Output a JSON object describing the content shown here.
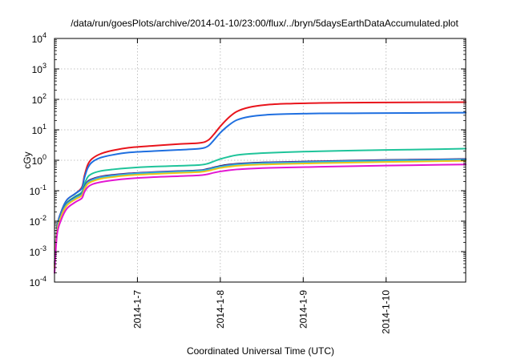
{
  "chart_data": {
    "type": "line",
    "title": "/data/run/goesPlots/archive/2014-01-10/23:00/flux/../bryn/5daysEarthDataAccumulated.plot",
    "xlabel": "Coordinated Universal Time (UTC)",
    "ylabel": "cGy",
    "yscale": "log",
    "ylim": [
      0.0001,
      10000
    ],
    "xlim": [
      "2014-01-06",
      "2014-01-10 23:00"
    ],
    "y_ticks": [
      {
        "base": "10",
        "exp": "-4"
      },
      {
        "base": "10",
        "exp": "-3"
      },
      {
        "base": "10",
        "exp": "-2"
      },
      {
        "base": "10",
        "exp": "-1"
      },
      {
        "base": "10",
        "exp": "0"
      },
      {
        "base": "10",
        "exp": "1"
      },
      {
        "base": "10",
        "exp": "2"
      },
      {
        "base": "10",
        "exp": "3"
      },
      {
        "base": "10",
        "exp": "4"
      }
    ],
    "x_ticks": [
      {
        "label": "2014-1-7",
        "day": 1
      },
      {
        "label": "2014-1-8",
        "day": 2
      },
      {
        "label": "2014-1-9",
        "day": 3
      },
      {
        "label": "2014-1-10",
        "day": 4
      }
    ],
    "grid": true,
    "legend": "none",
    "x_days": [
      0,
      0.03,
      0.08,
      0.15,
      0.25,
      0.33,
      0.36,
      0.4,
      0.45,
      0.55,
      0.7,
      0.9,
      1.2,
      1.5,
      1.75,
      1.85,
      1.92,
      2.0,
      2.1,
      2.2,
      2.35,
      2.55,
      2.8,
      3.2,
      3.6,
      4.0,
      4.5,
      4.96
    ],
    "series": [
      {
        "color": "#e8141c",
        "values": [
          0.0003,
          0.006,
          0.02,
          0.05,
          0.08,
          0.13,
          0.3,
          0.7,
          1.1,
          1.6,
          2.1,
          2.6,
          3.0,
          3.4,
          3.7,
          4.5,
          7.0,
          13,
          25,
          40,
          55,
          66,
          72,
          76,
          78,
          79,
          80,
          81
        ]
      },
      {
        "color": "#1f6fe0",
        "values": [
          0.0003,
          0.006,
          0.02,
          0.05,
          0.08,
          0.12,
          0.26,
          0.55,
          0.85,
          1.2,
          1.5,
          1.8,
          2.0,
          2.2,
          2.4,
          2.9,
          4.5,
          8.0,
          14,
          21,
          27,
          31,
          33,
          34.5,
          35,
          35.5,
          36,
          36.5
        ]
      },
      {
        "color": "#1fc49a",
        "values": [
          0.0003,
          0.005,
          0.017,
          0.04,
          0.065,
          0.09,
          0.16,
          0.28,
          0.36,
          0.44,
          0.5,
          0.56,
          0.62,
          0.66,
          0.7,
          0.78,
          0.92,
          1.1,
          1.3,
          1.48,
          1.62,
          1.74,
          1.85,
          1.98,
          2.08,
          2.18,
          2.28,
          2.4
        ]
      },
      {
        "color": "#1d1a57",
        "values": [
          0.0003,
          0.005,
          0.016,
          0.038,
          0.06,
          0.08,
          0.13,
          0.2,
          0.24,
          0.29,
          0.33,
          0.37,
          0.41,
          0.44,
          0.47,
          0.52,
          0.58,
          0.65,
          0.72,
          0.77,
          0.81,
          0.85,
          0.88,
          0.93,
          0.98,
          1.02,
          1.06,
          1.1
        ]
      },
      {
        "color": "#8e44c9",
        "values": [
          0.0003,
          0.005,
          0.016,
          0.037,
          0.058,
          0.078,
          0.125,
          0.19,
          0.23,
          0.28,
          0.32,
          0.36,
          0.4,
          0.43,
          0.46,
          0.5,
          0.56,
          0.62,
          0.69,
          0.74,
          0.78,
          0.82,
          0.85,
          0.9,
          0.95,
          0.99,
          1.03,
          1.07
        ]
      },
      {
        "color": "#1fb9e8",
        "values": [
          0.0003,
          0.005,
          0.015,
          0.036,
          0.057,
          0.076,
          0.12,
          0.18,
          0.22,
          0.27,
          0.31,
          0.35,
          0.39,
          0.42,
          0.45,
          0.49,
          0.55,
          0.61,
          0.67,
          0.72,
          0.76,
          0.8,
          0.83,
          0.88,
          0.93,
          0.97,
          1.01,
          1.05
        ]
      },
      {
        "color": "#f0c419",
        "values": [
          0.0003,
          0.0045,
          0.014,
          0.033,
          0.052,
          0.07,
          0.11,
          0.165,
          0.2,
          0.245,
          0.28,
          0.32,
          0.355,
          0.385,
          0.41,
          0.45,
          0.5,
          0.56,
          0.61,
          0.66,
          0.7,
          0.73,
          0.76,
          0.8,
          0.84,
          0.88,
          0.92,
          0.96
        ]
      },
      {
        "color": "#e316d2",
        "values": [
          0.0002,
          0.0035,
          0.011,
          0.026,
          0.042,
          0.057,
          0.09,
          0.13,
          0.16,
          0.19,
          0.22,
          0.25,
          0.28,
          0.3,
          0.32,
          0.35,
          0.39,
          0.43,
          0.47,
          0.5,
          0.53,
          0.56,
          0.58,
          0.61,
          0.64,
          0.67,
          0.7,
          0.73
        ]
      }
    ]
  }
}
